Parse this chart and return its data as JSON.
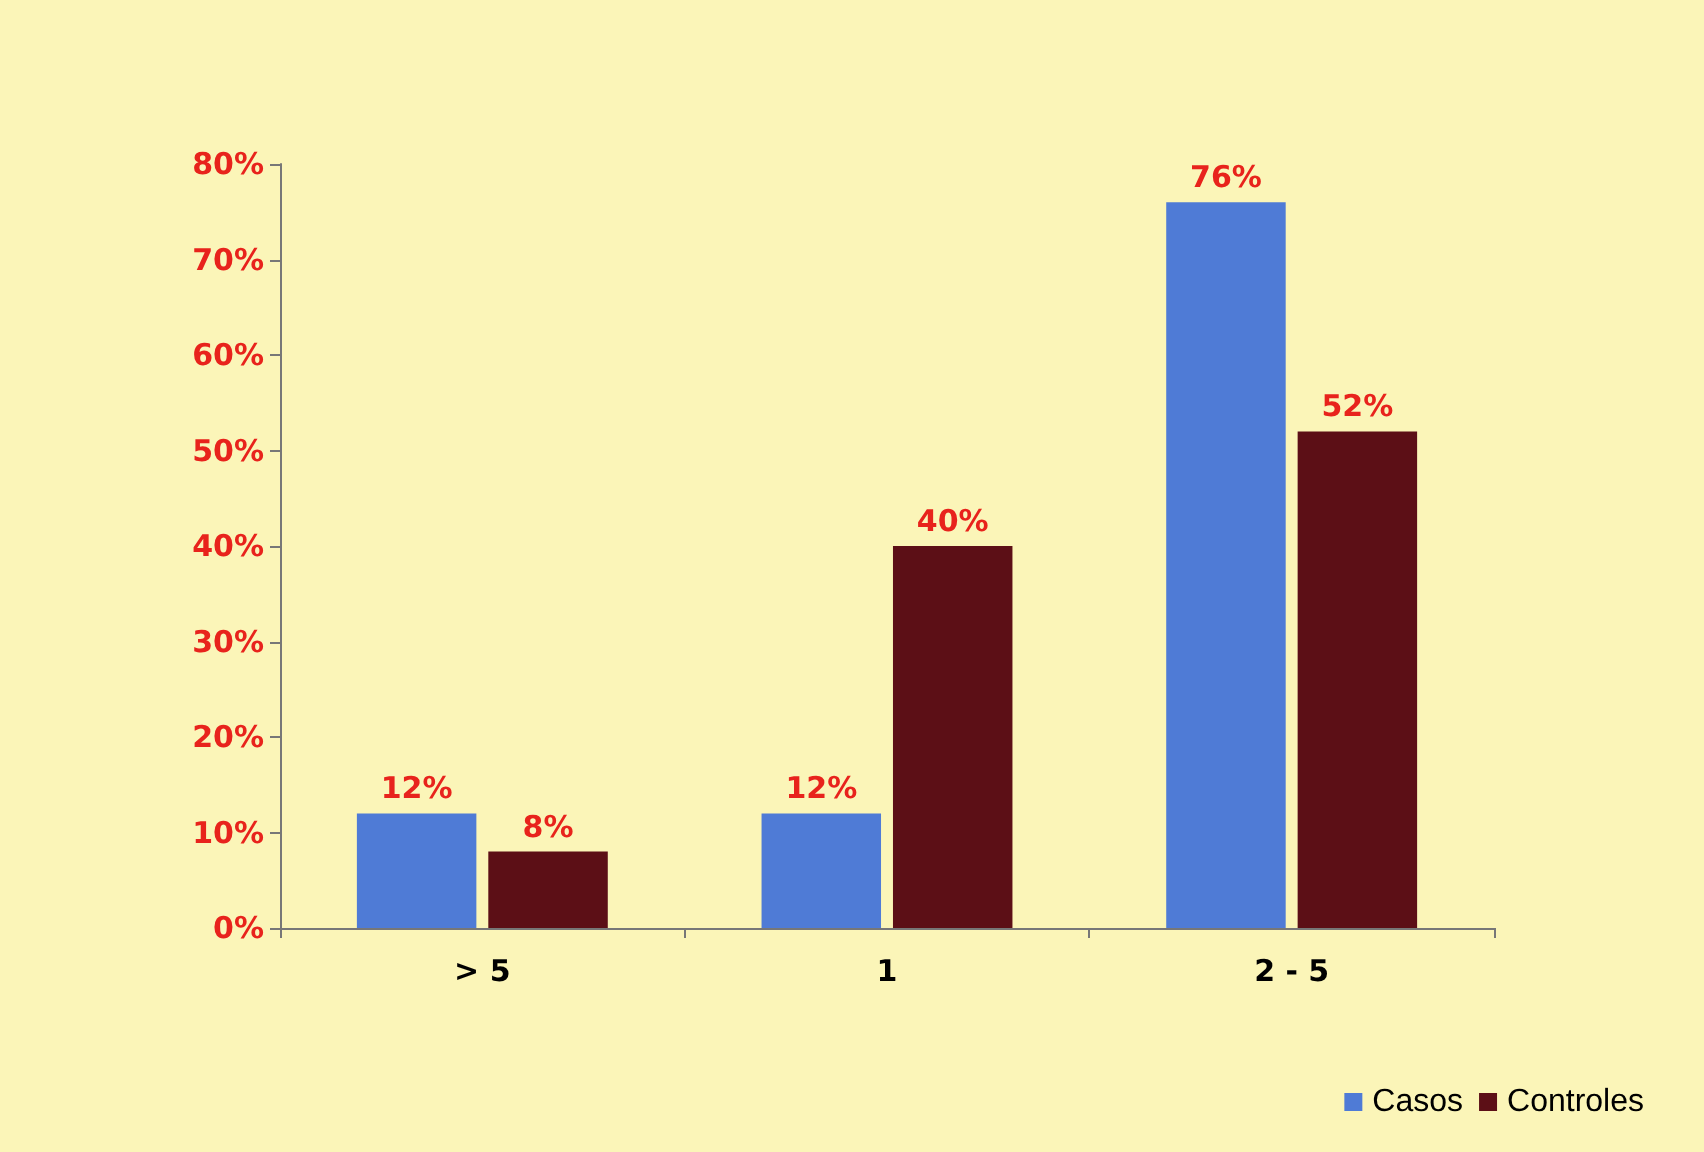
{
  "chart_data": {
    "type": "bar",
    "categories": [
      "> 5",
      "1",
      "2 - 5"
    ],
    "series": [
      {
        "name": "Casos",
        "color": "#4f7bd6",
        "values": [
          12,
          12,
          76
        ],
        "value_labels": [
          "12%",
          "12%",
          "76%"
        ]
      },
      {
        "name": "Controles",
        "color": "#5c0f16",
        "values": [
          8,
          40,
          52
        ],
        "value_labels": [
          "8%",
          "40%",
          "52%"
        ]
      }
    ],
    "ylim": [
      0,
      80
    ],
    "yticks": [
      {
        "value": 0,
        "label": "0%"
      },
      {
        "value": 10,
        "label": "10%"
      },
      {
        "value": 20,
        "label": "20%"
      },
      {
        "value": 30,
        "label": "30%"
      },
      {
        "value": 40,
        "label": "40%"
      },
      {
        "value": 50,
        "label": "50%"
      },
      {
        "value": 60,
        "label": "60%"
      },
      {
        "value": 70,
        "label": "70%"
      },
      {
        "value": 80,
        "label": "80%"
      }
    ],
    "grid": false,
    "legend": "bottom right"
  }
}
